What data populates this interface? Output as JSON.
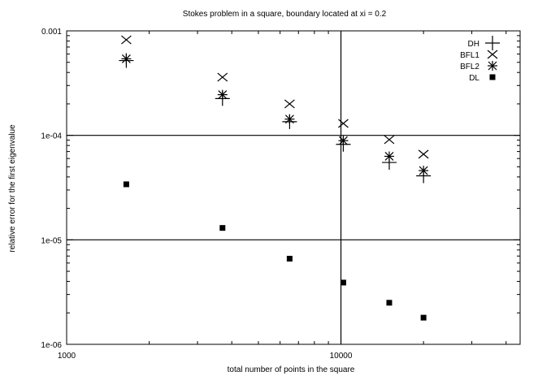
{
  "chart_data": {
    "type": "scatter",
    "title": "Stokes problem in a square, boundary located at xi = 0.2",
    "xlabel": "total number of points in the square",
    "ylabel": "relative error for the first eigenvalue",
    "x_scale": "log",
    "y_scale": "log",
    "xlim": [
      1000,
      45000
    ],
    "ylim": [
      1e-06,
      0.001
    ],
    "x_ticks": [
      {
        "value": 1000,
        "label": "1000"
      },
      {
        "value": 10000,
        "label": "10000"
      }
    ],
    "y_ticks": [
      {
        "value": 0.001,
        "label": "0.001"
      },
      {
        "value": 0.0001,
        "label": "1e-04"
      },
      {
        "value": 1e-05,
        "label": "1e-05"
      },
      {
        "value": 1e-06,
        "label": "1e-06"
      }
    ],
    "grid": {
      "x": [
        10000
      ],
      "y": [
        0.0001,
        1e-05
      ]
    },
    "legend_position": "top-right",
    "series": [
      {
        "name": "DH",
        "marker": "plus",
        "points": [
          [
            1650,
            0.00052
          ],
          [
            3700,
            0.000225
          ],
          [
            6500,
            0.000135
          ],
          [
            10200,
            8.2e-05
          ],
          [
            15000,
            5.5e-05
          ],
          [
            20000,
            4.1e-05
          ]
        ]
      },
      {
        "name": "BFL1",
        "marker": "cross",
        "points": [
          [
            1650,
            0.00082
          ],
          [
            3700,
            0.00036
          ],
          [
            6500,
            0.0002
          ],
          [
            10200,
            0.00013
          ],
          [
            15000,
            9.1e-05
          ],
          [
            20000,
            6.6e-05
          ]
        ]
      },
      {
        "name": "BFL2",
        "marker": "star",
        "points": [
          [
            1650,
            0.00054
          ],
          [
            3700,
            0.000245
          ],
          [
            6500,
            0.000143
          ],
          [
            10200,
            8.9e-05
          ],
          [
            15000,
            6.3e-05
          ],
          [
            20000,
            4.6e-05
          ]
        ]
      },
      {
        "name": "DL",
        "marker": "square",
        "points": [
          [
            1650,
            3.4e-05
          ],
          [
            3700,
            1.3e-05
          ],
          [
            6500,
            6.6e-06
          ],
          [
            10200,
            3.9e-06
          ],
          [
            15000,
            2.5e-06
          ],
          [
            20000,
            1.8e-06
          ]
        ]
      }
    ]
  }
}
